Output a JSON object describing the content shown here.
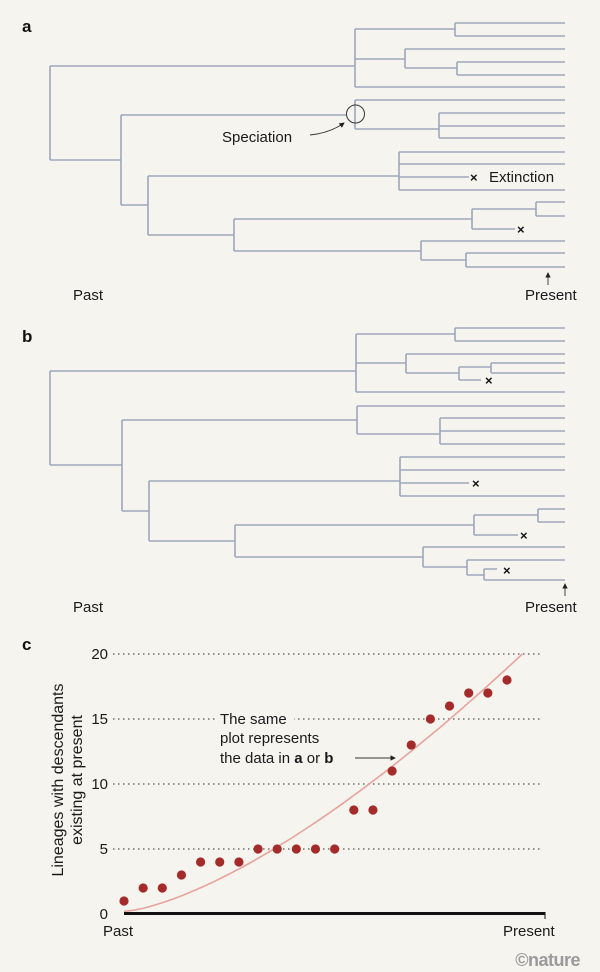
{
  "panel_a": {
    "label": "a",
    "speciation_label": "Speciation",
    "extinction_label": "Extinction",
    "past_label": "Past",
    "present_label": "Present"
  },
  "panel_b": {
    "label": "b",
    "past_label": "Past",
    "present_label": "Present"
  },
  "panel_c": {
    "label": "c",
    "annotation_line1": "The same",
    "annotation_line2": "plot represents",
    "annotation_line3_prefix": "the data in ",
    "annotation_a": "a",
    "annotation_or": " or ",
    "annotation_b": "b"
  },
  "credit": "©nature",
  "colors": {
    "background": "#f5f4ee",
    "tree_branch": "#9ea6bb",
    "points": "#a52a2a",
    "curve": "#e8a39d"
  },
  "chart_data": {
    "type": "scatter",
    "title": "",
    "xlabel": "",
    "ylabel_line1": "Lineages with descendants",
    "ylabel_line2": "existing at present",
    "x_tick_labels": [
      "Past",
      "Present"
    ],
    "y_ticks": [
      0,
      5,
      10,
      15,
      20
    ],
    "ylim": [
      0,
      20
    ],
    "grid": "horizontal dotted",
    "values": [
      1,
      2,
      2,
      3,
      4,
      4,
      4,
      5,
      5,
      5,
      5,
      5,
      8,
      8,
      11,
      13,
      15,
      16,
      17,
      17,
      18
    ],
    "fit_curve": [
      [
        0,
        0.2
      ],
      [
        4,
        1.9
      ],
      [
        8,
        5
      ],
      [
        12,
        9
      ],
      [
        16,
        13.7
      ],
      [
        20.8,
        20
      ]
    ]
  }
}
